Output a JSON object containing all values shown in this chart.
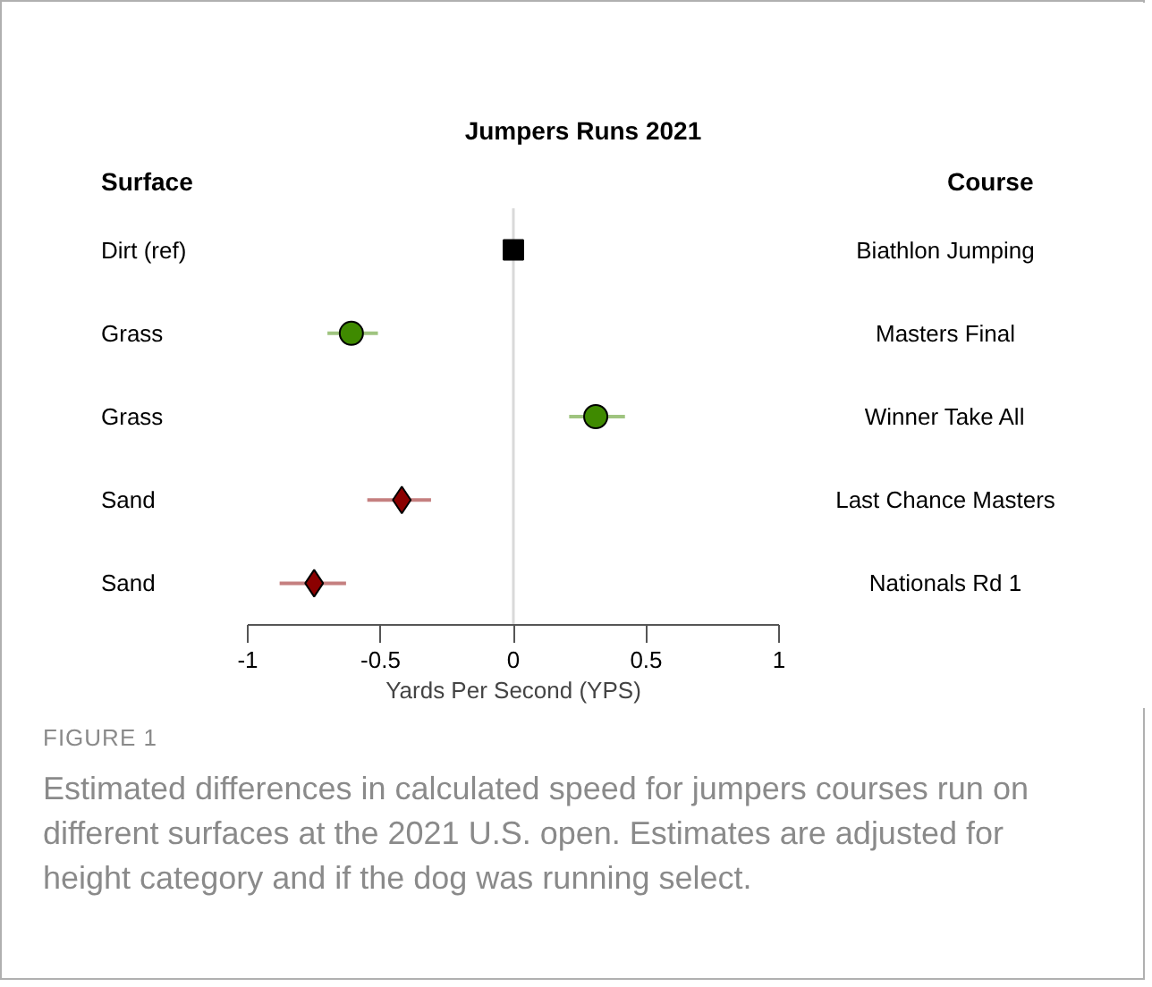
{
  "chart_data": {
    "type": "scatter",
    "orientation": "horizontal",
    "title": "Jumpers Runs 2021",
    "ylabel": "Surface",
    "xlabel": "Yards Per Second (YPS)",
    "categories": [
      "Dirt (ref)",
      "Grass",
      "Grass",
      "Sand",
      "Sand"
    ],
    "y2_categories": [
      "Biathlon Jumping",
      "Masters Final",
      "Winner Take All",
      "Last Chance Masters",
      "Nationals Rd 1"
    ],
    "series": [
      {
        "color": "#000000",
        "marker": "square",
        "values": [
          0,
          null,
          null,
          null,
          null
        ]
      },
      {
        "color": "#3f8a00",
        "marker": "circle",
        "values": [
          null,
          -0.61,
          0.31,
          null,
          null
        ],
        "errors": [
          null,
          [
            -0.7,
            -0.51
          ],
          [
            0.21,
            0.42
          ],
          null,
          null
        ]
      },
      {
        "color": "#8b0000",
        "marker": "diamond",
        "values": [
          null,
          null,
          null,
          -0.42,
          -0.75
        ],
        "errors": [
          null,
          null,
          null,
          [
            -0.55,
            -0.31
          ],
          [
            -0.88,
            -0.63
          ]
        ]
      }
    ],
    "xlim": [
      -1,
      1
    ],
    "xticks": [
      -1,
      -0.5,
      0,
      0.5,
      1
    ],
    "ref_lines": [
      {
        "axis": "x",
        "value": 0,
        "color": "#d9d9d9"
      }
    ],
    "annotations": [
      "Course",
      "FIGURE 1",
      "Estimated differences in calculated speed for jumpers courses run on different surfaces at the 2021 U.S. open. Estimates are adjusted for height category and if the dog was running select."
    ]
  }
}
